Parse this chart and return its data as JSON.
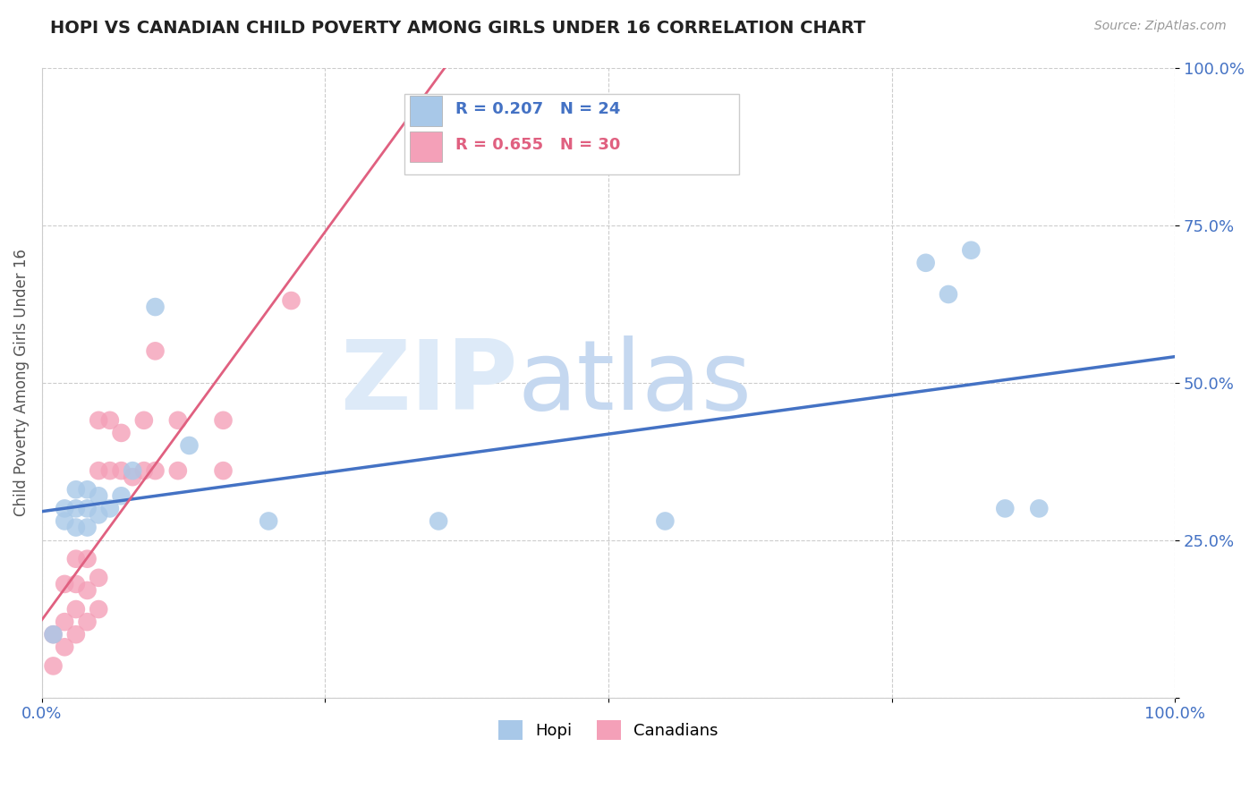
{
  "title": "HOPI VS CANADIAN CHILD POVERTY AMONG GIRLS UNDER 16 CORRELATION CHART",
  "source": "Source: ZipAtlas.com",
  "ylabel": "Child Poverty Among Girls Under 16",
  "xlim": [
    0,
    1
  ],
  "ylim": [
    0,
    1
  ],
  "xticks": [
    0.0,
    0.25,
    0.5,
    0.75,
    1.0
  ],
  "xticklabels": [
    "0.0%",
    "",
    "",
    "",
    "100.0%"
  ],
  "yticks": [
    0.0,
    0.25,
    0.5,
    0.75,
    1.0
  ],
  "yticklabels": [
    "",
    "25.0%",
    "50.0%",
    "75.0%",
    "100.0%"
  ],
  "hopi_color": "#a8c8e8",
  "canadian_color": "#f4a0b8",
  "hopi_line_color": "#4472c4",
  "canadian_line_color": "#e06080",
  "hopi_R": 0.207,
  "hopi_N": 24,
  "canadian_R": 0.655,
  "canadian_N": 30,
  "hopi_x": [
    0.01,
    0.02,
    0.02,
    0.03,
    0.03,
    0.03,
    0.04,
    0.04,
    0.04,
    0.05,
    0.05,
    0.06,
    0.07,
    0.08,
    0.1,
    0.13,
    0.2,
    0.35,
    0.55,
    0.78,
    0.8,
    0.82,
    0.85,
    0.88
  ],
  "hopi_y": [
    0.1,
    0.28,
    0.3,
    0.27,
    0.3,
    0.33,
    0.27,
    0.3,
    0.33,
    0.29,
    0.32,
    0.3,
    0.32,
    0.36,
    0.62,
    0.4,
    0.28,
    0.28,
    0.28,
    0.69,
    0.64,
    0.71,
    0.3,
    0.3
  ],
  "canadian_x": [
    0.01,
    0.01,
    0.02,
    0.02,
    0.02,
    0.03,
    0.03,
    0.03,
    0.03,
    0.04,
    0.04,
    0.04,
    0.05,
    0.05,
    0.05,
    0.05,
    0.06,
    0.06,
    0.07,
    0.07,
    0.08,
    0.09,
    0.09,
    0.1,
    0.1,
    0.12,
    0.12,
    0.16,
    0.16,
    0.22
  ],
  "canadian_y": [
    0.05,
    0.1,
    0.08,
    0.12,
    0.18,
    0.1,
    0.14,
    0.18,
    0.22,
    0.12,
    0.17,
    0.22,
    0.14,
    0.19,
    0.36,
    0.44,
    0.36,
    0.44,
    0.36,
    0.42,
    0.35,
    0.36,
    0.44,
    0.55,
    0.36,
    0.36,
    0.44,
    0.36,
    0.44,
    0.63
  ],
  "background_color": "#ffffff"
}
